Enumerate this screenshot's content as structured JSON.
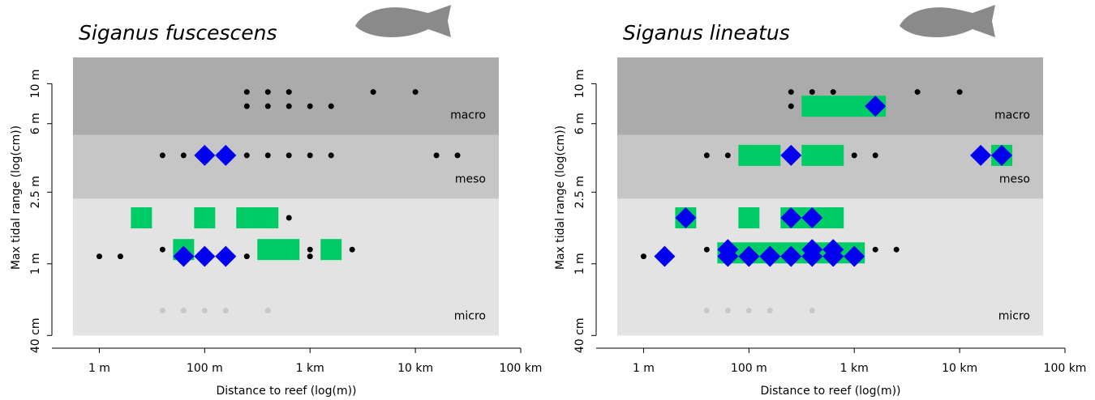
{
  "chart_data": [
    {
      "type": "scatter",
      "title": "Siganus fuscescens",
      "x_label": "Distance to reef (log(m))",
      "y_label": "Max tidal range (log(cm))",
      "xlim": [
        -0.45,
        4.0
      ],
      "xticks": [
        {
          "value": 0,
          "label": "1 m"
        },
        {
          "value": 1,
          "label": "100 m"
        },
        {
          "value": 2,
          "label": "1 km"
        },
        {
          "value": 3,
          "label": "10 km"
        },
        {
          "value": 4,
          "label": "100 km"
        }
      ],
      "ylim": [
        34,
        1600
      ],
      "log_y": true,
      "yticks": [
        {
          "value": 40,
          "label": "40 cm"
        },
        {
          "value": 100,
          "label": "1 m"
        },
        {
          "value": 250,
          "label": "2.5 m"
        },
        {
          "value": 600,
          "label": "6 m"
        },
        {
          "value": 1000,
          "label": "10 m"
        }
      ],
      "zones": [
        {
          "name": "micro",
          "range": [
            40,
            230
          ],
          "color": "#e3e3e3"
        },
        {
          "name": "meso",
          "range": [
            230,
            520
          ],
          "color": "#c6c6c6"
        },
        {
          "name": "macro",
          "range": [
            520,
            1400
          ],
          "color": "#ababab"
        }
      ],
      "ranges": {
        "color": "#00cc66",
        "x0": [
          0.3,
          0.9,
          1.3,
          0.7,
          1.5,
          2.1
        ],
        "x1": [
          0.5,
          1.1,
          1.7,
          0.9,
          1.9,
          2.3
        ],
        "y": [
          180,
          180,
          180,
          120,
          120,
          120
        ]
      },
      "series": [
        {
          "marker": "dot",
          "color": "#000000",
          "x": [
            1.4,
            1.6,
            1.8,
            2.6,
            3.0,
            1.4,
            1.6,
            1.8,
            2.0,
            2.2,
            0.6,
            0.8,
            1.4,
            1.6,
            1.8,
            2.0,
            2.2,
            3.2,
            3.4,
            1.8,
            0.6,
            2.0,
            2.4,
            0,
            0.2,
            1.4,
            2.0
          ],
          "y": [
            900,
            900,
            900,
            900,
            900,
            750,
            750,
            750,
            750,
            750,
            400,
            400,
            400,
            400,
            400,
            400,
            400,
            400,
            400,
            180,
            120,
            120,
            120,
            110,
            110,
            110,
            110
          ]
        },
        {
          "marker": "dot",
          "color": "#c8c8c8",
          "x": [
            0.6,
            0.8,
            1.0,
            1.2,
            1.6
          ],
          "y": [
            55,
            55,
            55,
            55,
            55
          ]
        },
        {
          "marker": "diamond",
          "color": "#0000ee",
          "x": [
            1.0,
            1.2,
            0.8,
            1.0,
            1.2
          ],
          "y": [
            400,
            400,
            110,
            110,
            110
          ]
        }
      ]
    },
    {
      "type": "scatter",
      "title": "Siganus lineatus",
      "x_label": "Distance to reef (log(m))",
      "y_label": "Max tidal range (log(cm))",
      "xlim": [
        -0.45,
        4.0
      ],
      "xticks": [
        {
          "value": 0,
          "label": "1 m"
        },
        {
          "value": 1,
          "label": "100 m"
        },
        {
          "value": 2,
          "label": "1 km"
        },
        {
          "value": 3,
          "label": "10 km"
        },
        {
          "value": 4,
          "label": "100 km"
        }
      ],
      "ylim": [
        34,
        1600
      ],
      "log_y": true,
      "yticks": [
        {
          "value": 40,
          "label": "40 cm"
        },
        {
          "value": 100,
          "label": "1 m"
        },
        {
          "value": 250,
          "label": "2.5 m"
        },
        {
          "value": 600,
          "label": "6 m"
        },
        {
          "value": 1000,
          "label": "10 m"
        }
      ],
      "zones": [
        {
          "name": "micro",
          "range": [
            40,
            230
          ],
          "color": "#e3e3e3"
        },
        {
          "name": "meso",
          "range": [
            230,
            520
          ],
          "color": "#c6c6c6"
        },
        {
          "name": "macro",
          "range": [
            520,
            1400
          ],
          "color": "#ababab"
        }
      ],
      "ranges": {
        "color": "#00cc66",
        "x0": [
          1.5,
          0.9,
          1.5,
          3.3,
          0.3,
          0.9,
          1.3,
          0.7
        ],
        "x1": [
          2.3,
          1.3,
          1.9,
          3.5,
          0.5,
          1.1,
          1.9,
          2.1
        ],
        "y": [
          750,
          400,
          400,
          400,
          180,
          180,
          180,
          115
        ]
      },
      "series": [
        {
          "marker": "dot",
          "color": "#000000",
          "x": [
            1.4,
            1.6,
            1.8,
            2.6,
            3.0,
            1.4,
            0.6,
            0.8,
            2.0,
            2.2,
            0.6,
            2.2,
            2.4,
            0
          ],
          "y": [
            900,
            900,
            900,
            900,
            900,
            750,
            400,
            400,
            400,
            400,
            120,
            120,
            120,
            110
          ]
        },
        {
          "marker": "dot",
          "color": "#c8c8c8",
          "x": [
            0.6,
            0.8,
            1.0,
            1.2,
            1.6
          ],
          "y": [
            55,
            55,
            55,
            55,
            55
          ]
        },
        {
          "marker": "diamond",
          "color": "#0000ee",
          "x": [
            2.2,
            1.4,
            3.2,
            3.4,
            0.4,
            1.4,
            1.6,
            0.8,
            1.6,
            1.8,
            0.2,
            0.8,
            1.0,
            1.2,
            1.4,
            1.6,
            1.8,
            2.0
          ],
          "y": [
            750,
            400,
            400,
            400,
            180,
            180,
            180,
            120,
            120,
            120,
            110,
            110,
            110,
            110,
            110,
            110,
            110,
            110
          ]
        }
      ]
    }
  ]
}
